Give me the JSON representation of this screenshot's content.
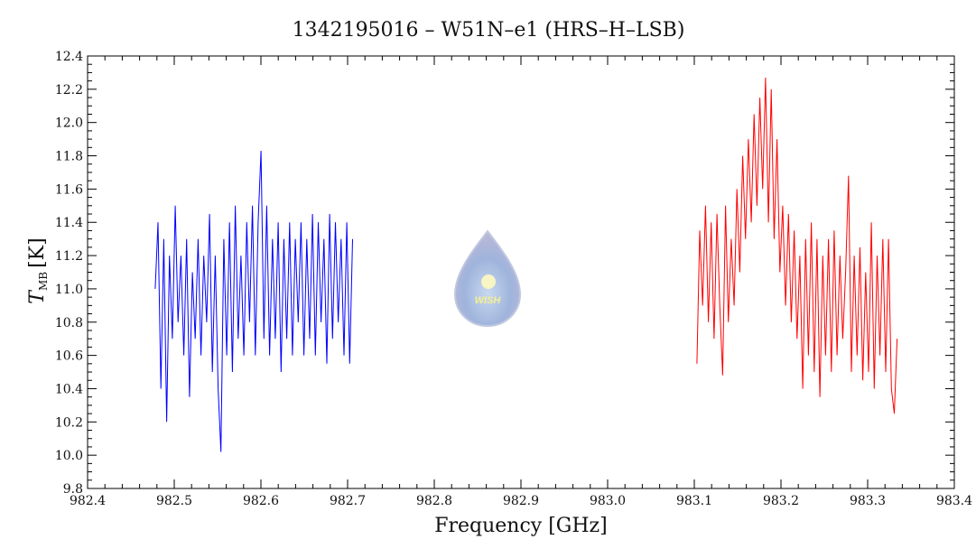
{
  "chart_data": {
    "type": "line",
    "title": "1342195016 – W51N–e1 (HRS–H–LSB)",
    "xlabel": "Frequency [GHz]",
    "ylabel_main": "T",
    "ylabel_sub": "MB",
    "ylabel_unit": "[K]",
    "xlim": [
      982.4,
      983.4
    ],
    "ylim": [
      9.8,
      12.4
    ],
    "xticks": [
      "982.4",
      "982.5",
      "982.6",
      "982.7",
      "982.8",
      "982.9",
      "983.0",
      "983.1",
      "983.2",
      "983.3",
      "983.4"
    ],
    "yticks": [
      "9.8",
      "10.0",
      "10.2",
      "10.4",
      "10.6",
      "10.8",
      "11.0",
      "11.2",
      "11.4",
      "11.6",
      "11.8",
      "12.0",
      "12.2",
      "12.4"
    ],
    "grid": false,
    "logo_text": "WISH",
    "series": [
      {
        "name": "blue",
        "color": "#0000ff",
        "x0": 982.478,
        "dx": 0.0033,
        "values": [
          11.0,
          11.4,
          10.4,
          11.3,
          10.2,
          11.2,
          10.7,
          11.5,
          10.8,
          11.2,
          10.6,
          11.3,
          10.35,
          11.1,
          10.7,
          11.3,
          10.6,
          11.2,
          10.8,
          11.45,
          10.5,
          11.2,
          10.4,
          10.02,
          11.3,
          10.6,
          11.4,
          10.5,
          11.5,
          10.7,
          11.2,
          10.6,
          11.4,
          10.8,
          11.5,
          10.6,
          11.4,
          11.83,
          10.7,
          11.5,
          10.6,
          11.3,
          10.7,
          11.4,
          10.5,
          11.3,
          10.7,
          11.4,
          10.6,
          11.3,
          10.8,
          11.4,
          10.6,
          11.3,
          10.7,
          11.45,
          10.6,
          11.4,
          10.8,
          11.3,
          10.55,
          11.45,
          10.7,
          11.4,
          10.8,
          11.3,
          10.6,
          11.4,
          10.55,
          11.3
        ]
      },
      {
        "name": "red",
        "color": "#ff0000",
        "x0": 983.103,
        "dx": 0.0033,
        "values": [
          10.55,
          11.35,
          10.9,
          11.5,
          10.8,
          11.4,
          10.7,
          11.45,
          10.9,
          10.48,
          11.5,
          10.8,
          11.3,
          10.9,
          11.6,
          11.1,
          11.8,
          11.3,
          11.9,
          11.4,
          12.05,
          11.5,
          12.15,
          11.6,
          12.27,
          11.4,
          12.2,
          11.3,
          11.9,
          11.1,
          11.5,
          10.9,
          11.45,
          10.8,
          11.35,
          10.7,
          11.2,
          10.4,
          11.3,
          10.6,
          11.4,
          10.5,
          11.3,
          10.35,
          11.2,
          10.6,
          11.3,
          10.5,
          11.35,
          10.6,
          11.2,
          10.7,
          11.1,
          11.68,
          10.5,
          11.2,
          10.6,
          11.25,
          10.45,
          11.1,
          10.5,
          11.4,
          10.4,
          11.2,
          10.6,
          11.3,
          10.5,
          11.3,
          10.4,
          10.25,
          10.7
        ]
      }
    ]
  }
}
